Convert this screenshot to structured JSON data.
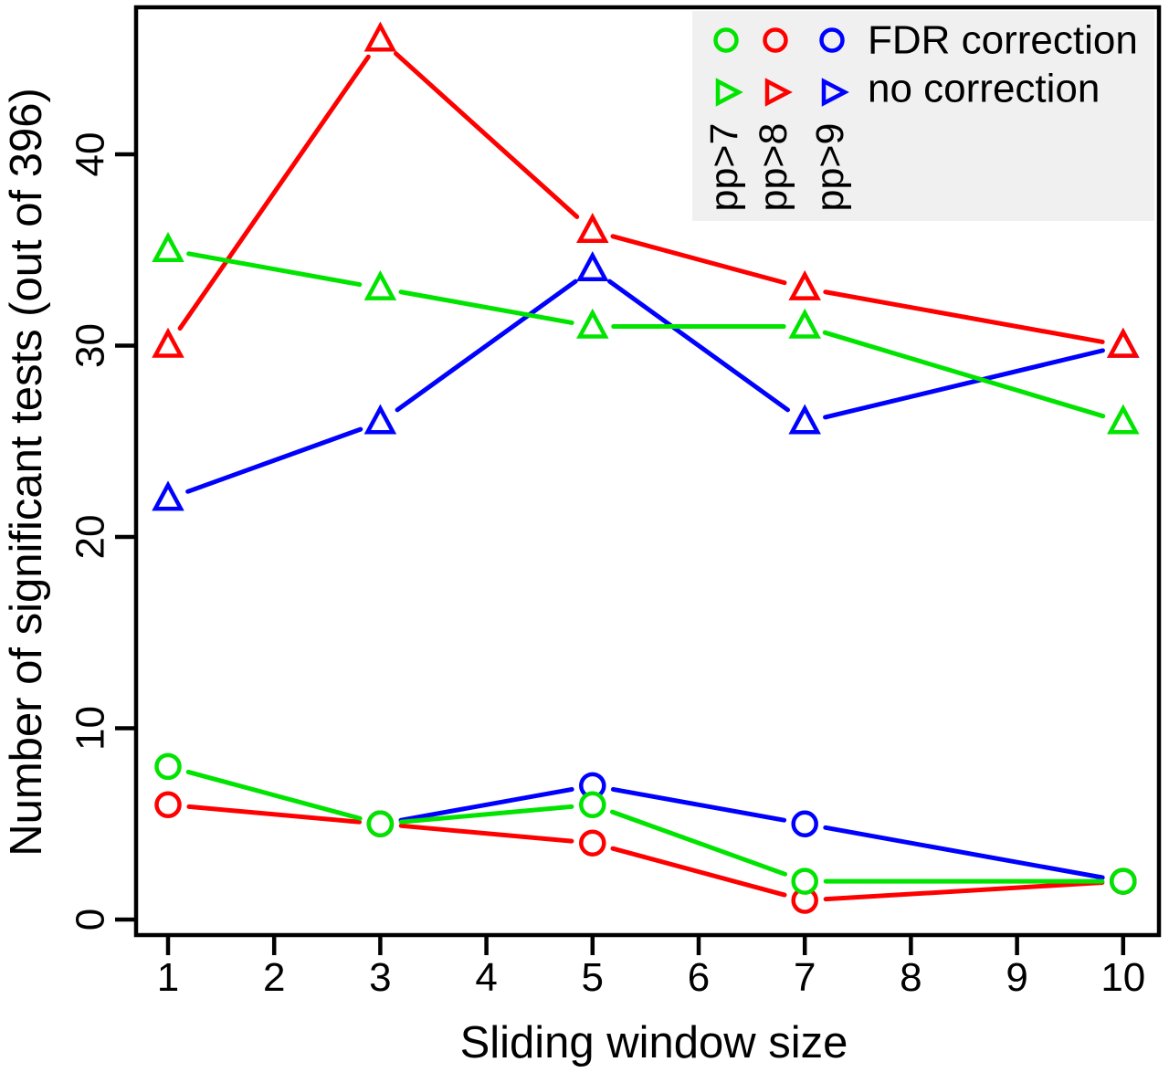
{
  "figure": {
    "background": "#FFFFFF",
    "axis_color": "#000000"
  },
  "chart_data": {
    "type": "line",
    "title": "",
    "xlabel": "Sliding window size",
    "ylabel": "Number of significant tests (out of 396)",
    "x": [
      1,
      3,
      5,
      7,
      10
    ],
    "xticks": [
      "1",
      "2",
      "3",
      "4",
      "5",
      "6",
      "7",
      "8",
      "9",
      "10"
    ],
    "yticks": [
      "0",
      "10",
      "20",
      "30",
      "40"
    ],
    "xlim": [
      0.7,
      10.4
    ],
    "ylim": [
      -0.9,
      47.7
    ],
    "grid": false,
    "marker_style": "open",
    "series": [
      {
        "name": "pp>9 no correction",
        "pp": "pp>9",
        "group": "no correction",
        "color": "#0000FF",
        "marker": "triangle-up",
        "values": [
          22,
          26,
          34,
          26,
          30
        ]
      },
      {
        "name": "pp>8 no correction",
        "pp": "pp>8",
        "group": "no correction",
        "color": "#FF0000",
        "marker": "triangle-up",
        "values": [
          30,
          46,
          36,
          33,
          30
        ]
      },
      {
        "name": "pp>7 no correction",
        "pp": "pp>7",
        "group": "no correction",
        "color": "#00E400",
        "marker": "triangle-up",
        "values": [
          35,
          33,
          31,
          31,
          26
        ]
      },
      {
        "name": "pp>9 FDR correction",
        "pp": "pp>9",
        "group": "FDR correction",
        "color": "#0000FF",
        "marker": "circle",
        "values": [
          null,
          5,
          7,
          5,
          2
        ]
      },
      {
        "name": "pp>8 FDR correction",
        "pp": "pp>8",
        "group": "FDR correction",
        "color": "#FF0000",
        "marker": "circle",
        "values": [
          6,
          5,
          4,
          1,
          2
        ]
      },
      {
        "name": "pp>7 FDR correction",
        "pp": "pp>7",
        "group": "FDR correction",
        "color": "#00E400",
        "marker": "circle",
        "values": [
          8,
          5,
          6,
          2,
          2
        ]
      }
    ],
    "legend": {
      "position": "top-right",
      "background": "#F0F0F0",
      "marker_rows": [
        {
          "marker": "circle",
          "label": "FDR correction"
        },
        {
          "marker": "triangle-right",
          "label": "no correction"
        }
      ],
      "columns": [
        {
          "label": "pp>7",
          "color": "#00E400"
        },
        {
          "label": "pp>8",
          "color": "#FF0000"
        },
        {
          "label": "pp>9",
          "color": "#0000FF"
        }
      ]
    }
  }
}
